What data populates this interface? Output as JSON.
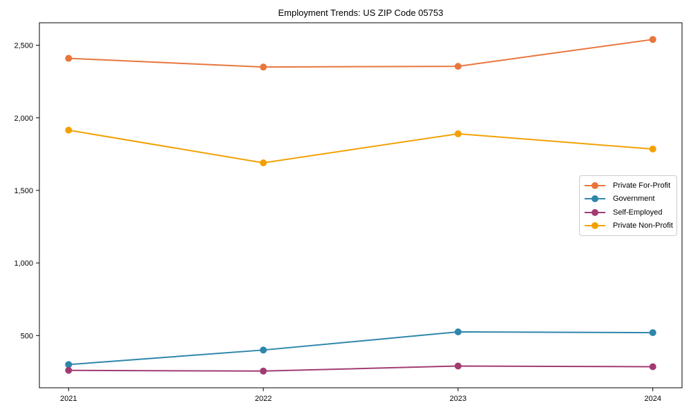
{
  "chart_data": {
    "type": "line",
    "title": "Employment Trends: US ZIP Code 05753",
    "x": [
      2021,
      2022,
      2023,
      2024
    ],
    "x_tick_labels": [
      "2021",
      "2022",
      "2023",
      "2024"
    ],
    "y_ticks": [
      500,
      1000,
      1500,
      2000,
      2500
    ],
    "y_tick_labels": [
      "500",
      "1,000",
      "1,500",
      "2,000",
      "2,500"
    ],
    "xlim": [
      2020.85,
      2024.15
    ],
    "ylim": [
      140,
      2655
    ],
    "grid": false,
    "legend_position": "center-right",
    "marker": "circle",
    "axis_color": "#000000",
    "background_color": "#ffffff",
    "series": [
      {
        "name": "Private For-Profit",
        "color": "#E8763C",
        "values": [
          2410,
          2350,
          2355,
          2540
        ]
      },
      {
        "name": "Government",
        "color": "#2E86AB",
        "values": [
          300,
          400,
          525,
          520
        ]
      },
      {
        "name": "Self-Employed",
        "color": "#A23B72",
        "values": [
          260,
          255,
          290,
          285
        ]
      },
      {
        "name": "Private Non-Profit",
        "color": "#F2A104",
        "values": [
          1915,
          1690,
          1890,
          1785
        ]
      }
    ]
  }
}
